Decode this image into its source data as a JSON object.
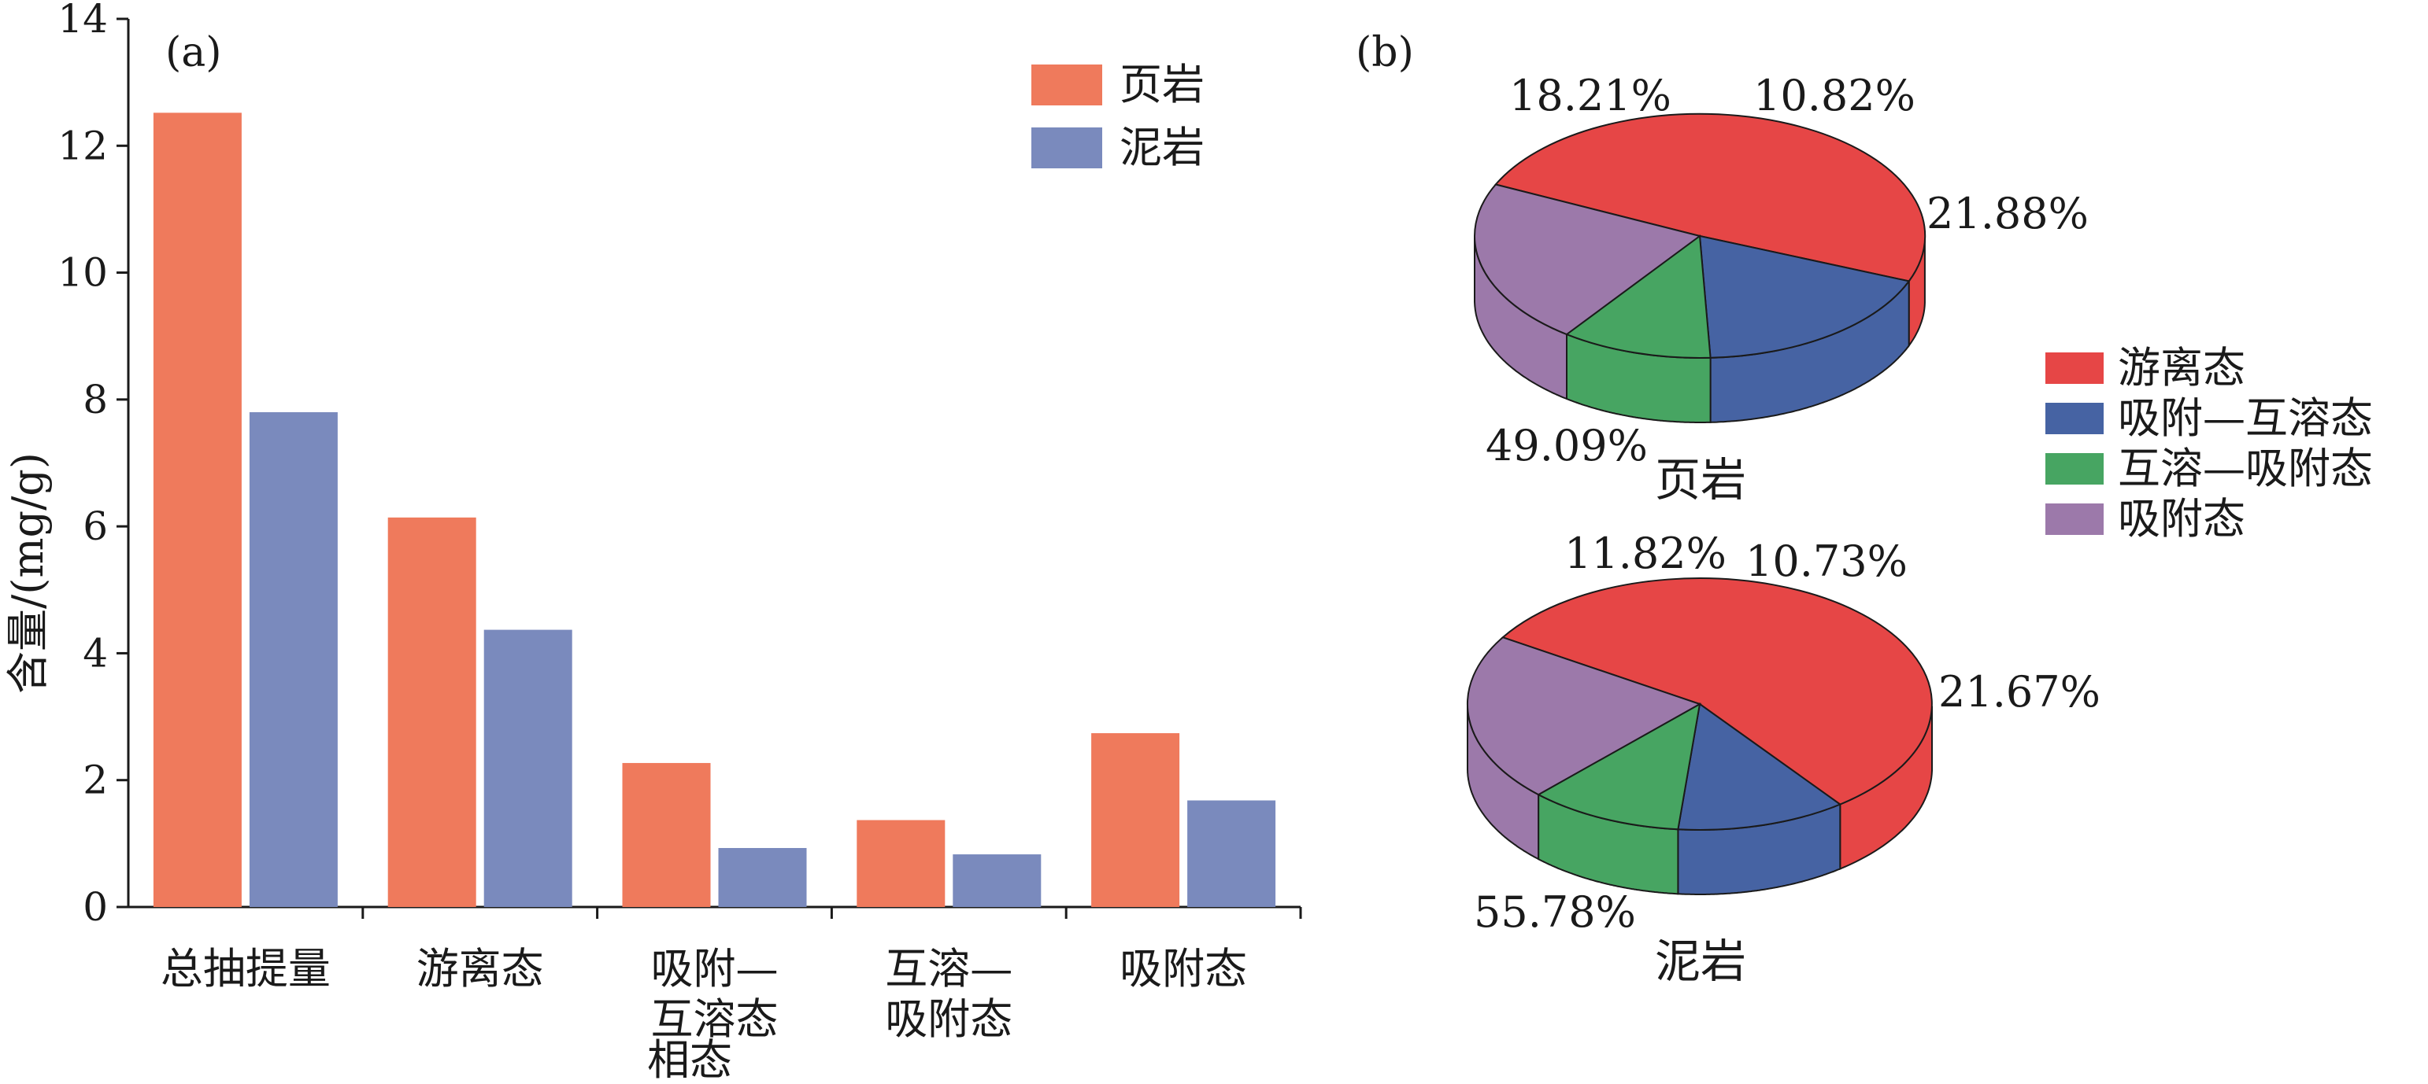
{
  "colors": {
    "shale": "#EF7A5C",
    "mudstone": "#7A8ABD",
    "free": "#E64646",
    "adsorbed_dissolved": "#4663A3",
    "dissolved_adsorbed": "#47A562",
    "adsorbed": "#9C79AA"
  },
  "chart_data": [
    {
      "type": "bar",
      "panel": "(a)",
      "ylabel": "含量/(mg/g)",
      "xlabel": "相态",
      "ylim": [
        0,
        14
      ],
      "yticks": [
        0,
        2,
        4,
        6,
        8,
        10,
        12,
        14
      ],
      "categories": [
        [
          "总抽提量"
        ],
        [
          "游离态"
        ],
        [
          "吸附—",
          "互溶态"
        ],
        [
          "互溶—",
          "吸附态"
        ],
        [
          "吸附态"
        ]
      ],
      "series": [
        {
          "name": "页岩",
          "values": [
            12.52,
            6.14,
            2.27,
            1.37,
            2.74
          ]
        },
        {
          "name": "泥岩",
          "values": [
            7.8,
            4.37,
            0.93,
            0.83,
            1.68
          ]
        }
      ],
      "legend_position": "top-right"
    },
    {
      "type": "pie",
      "panel": "(b)",
      "legend": [
        "游离态",
        "吸附—互溶态",
        "互溶—吸附态",
        "吸附态"
      ],
      "legend_position": "right",
      "pies": [
        {
          "title": "页岩",
          "slices": [
            {
              "label": "游离态",
              "value": 49.09,
              "text": "49.09%"
            },
            {
              "label": "吸附—互溶态",
              "value": 18.21,
              "text": "18.21%"
            },
            {
              "label": "互溶—吸附态",
              "value": 10.82,
              "text": "10.82%"
            },
            {
              "label": "吸附态",
              "value": 21.88,
              "text": "21.88%"
            }
          ]
        },
        {
          "title": "泥岩",
          "slices": [
            {
              "label": "游离态",
              "value": 55.78,
              "text": "55.78%"
            },
            {
              "label": "吸附—互溶态",
              "value": 11.82,
              "text": "11.82%"
            },
            {
              "label": "互溶—吸附态",
              "value": 10.73,
              "text": "10.73%"
            },
            {
              "label": "吸附态",
              "value": 21.67,
              "text": "21.67%"
            }
          ]
        }
      ]
    }
  ]
}
